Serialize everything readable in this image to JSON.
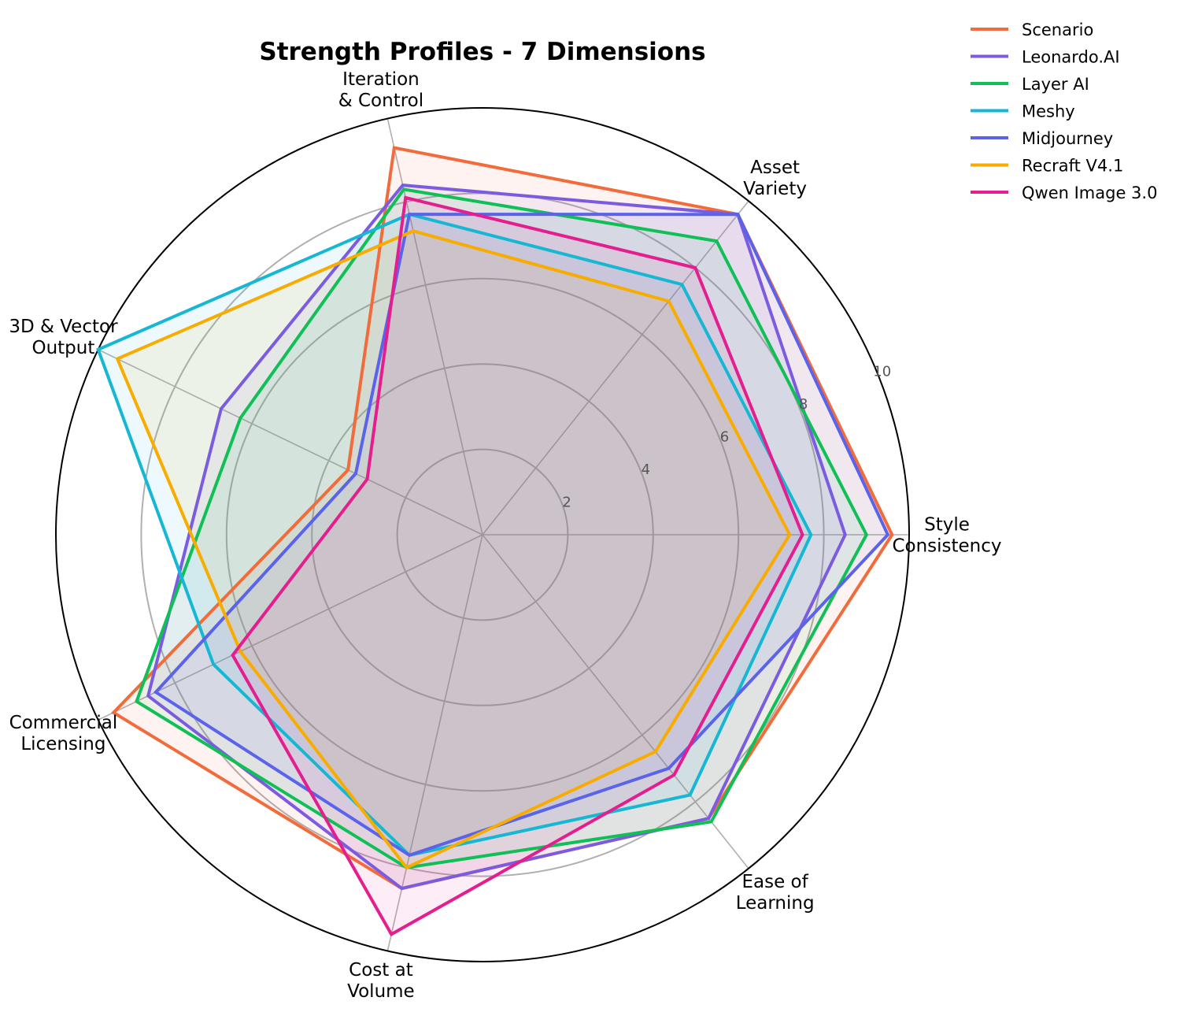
{
  "chart_data": {
    "type": "radar",
    "title": "Strength Profiles - 7 Dimensions",
    "categories": [
      "Style\nConsistency",
      "Asset\nVariety",
      "Iteration\n& Control",
      "3D & Vector\nOutput",
      "Commercial\nLicensing",
      "Cost at\nVolume",
      "Ease of\nLearning"
    ],
    "rlim": [
      0,
      10
    ],
    "rticks": [
      "2",
      "4",
      "6",
      "8",
      "10"
    ],
    "rtick_values": [
      2,
      4,
      6,
      8,
      10
    ],
    "grid": true,
    "legend_position": "top-right",
    "series": [
      {
        "name": "Scenario",
        "color": "#f26b3a",
        "values": [
          9.6,
          9.6,
          9.3,
          3.5,
          9.6,
          8.5,
          8.5
        ]
      },
      {
        "name": "Leonardo.AI",
        "color": "#7b5ce0",
        "values": [
          8.5,
          9.6,
          8.4,
          6.8,
          8.7,
          8.5,
          8.5
        ]
      },
      {
        "name": "Layer AI",
        "color": "#10c056",
        "values": [
          9.0,
          8.8,
          8.3,
          6.3,
          9.0,
          8.0,
          8.6
        ]
      },
      {
        "name": "Meshy",
        "color": "#16b7d3",
        "values": [
          7.7,
          7.5,
          7.7,
          10.0,
          7.0,
          7.7,
          7.8
        ]
      },
      {
        "name": "Midjourney",
        "color": "#5a63ea",
        "values": [
          9.5,
          9.6,
          7.7,
          3.3,
          8.5,
          7.7,
          7.0
        ]
      },
      {
        "name": "Recraft V4.1",
        "color": "#f8ac00",
        "values": [
          7.2,
          7.0,
          7.3,
          9.5,
          6.3,
          8.0,
          6.5
        ]
      },
      {
        "name": "Qwen Image 3.0",
        "color": "#e41e8e",
        "values": [
          7.5,
          8.0,
          8.1,
          3.0,
          6.5,
          9.6,
          7.2
        ]
      }
    ]
  }
}
